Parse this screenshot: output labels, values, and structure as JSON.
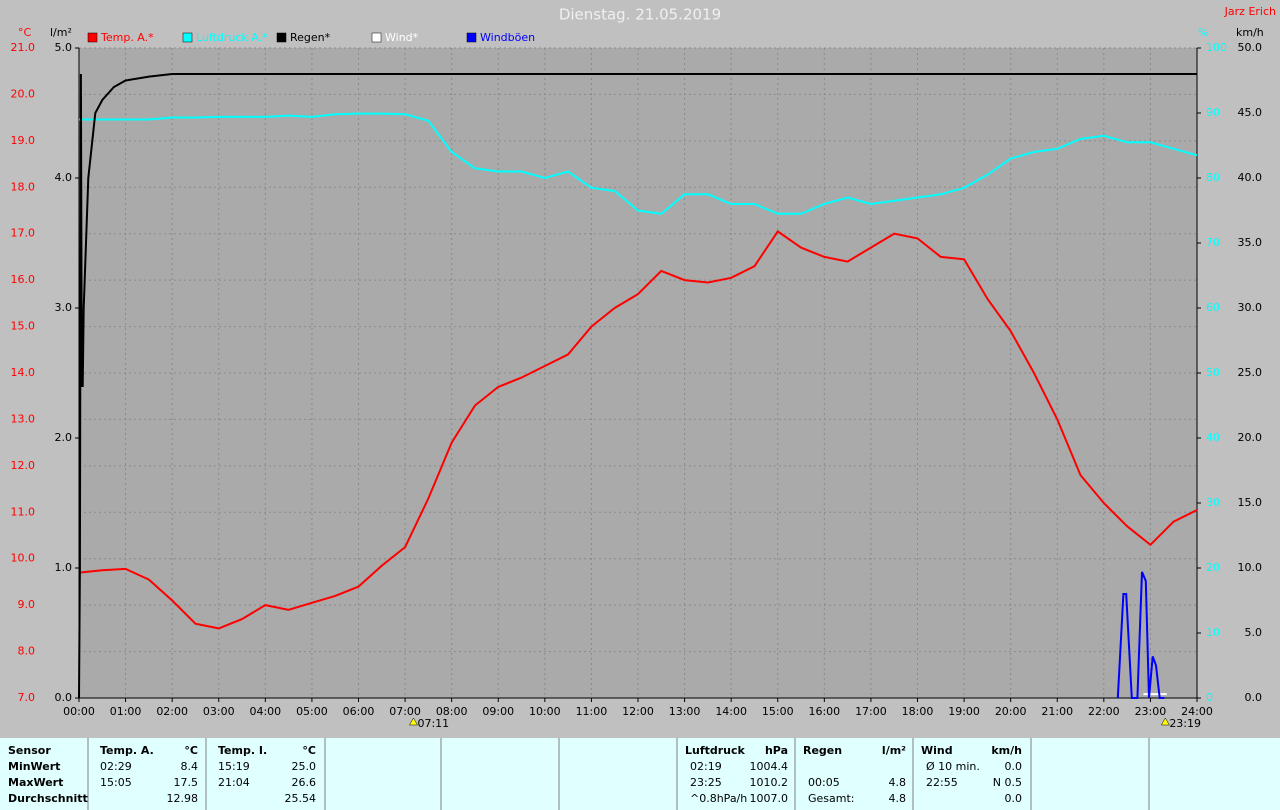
{
  "chart_data": {
    "type": "line",
    "title": "Dienstag. 21.05.2019",
    "station": "Jarz Erich",
    "ylabel": "°C",
    "y2label": "l/m²",
    "y3label": "%",
    "y4label": "km/h",
    "grid": true,
    "x": [
      0,
      0.5,
      1,
      1.5,
      2,
      2.5,
      3,
      3.5,
      4,
      4.5,
      5,
      5.5,
      6,
      6.5,
      7,
      7.5,
      8,
      8.5,
      9,
      9.5,
      10,
      10.5,
      11,
      11.5,
      12,
      12.5,
      13,
      13.5,
      14,
      14.5,
      15,
      15.5,
      16,
      16.5,
      17,
      17.5,
      18,
      18.5,
      19,
      19.5,
      20,
      20.5,
      21,
      21.5,
      22,
      22.5,
      23,
      23.5,
      24
    ],
    "xlim": [
      0,
      24
    ],
    "xticks": [
      {
        "value": 0,
        "label": "00:00"
      },
      {
        "value": 1,
        "label": "01:00"
      },
      {
        "value": 2,
        "label": "02:00"
      },
      {
        "value": 3,
        "label": "03:00"
      },
      {
        "value": 4,
        "label": "04:00"
      },
      {
        "value": 5,
        "label": "05:00"
      },
      {
        "value": 6,
        "label": "06:00"
      },
      {
        "value": 7,
        "label": "07:00"
      },
      {
        "value": 8,
        "label": "08:00"
      },
      {
        "value": 9,
        "label": "09:00"
      },
      {
        "value": 10,
        "label": "10:00"
      },
      {
        "value": 11,
        "label": "11:00"
      },
      {
        "value": 12,
        "label": "12:00"
      },
      {
        "value": 13,
        "label": "13:00"
      },
      {
        "value": 14,
        "label": "14:00"
      },
      {
        "value": 15,
        "label": "15:00"
      },
      {
        "value": 16,
        "label": "16:00"
      },
      {
        "value": 17,
        "label": "17:00"
      },
      {
        "value": 18,
        "label": "18:00"
      },
      {
        "value": 19,
        "label": "19:00"
      },
      {
        "value": 20,
        "label": "20:00"
      },
      {
        "value": 21,
        "label": "21:00"
      },
      {
        "value": 22,
        "label": "22:00"
      },
      {
        "value": 23,
        "label": "23:00"
      },
      {
        "value": 24,
        "label": "24:00"
      }
    ],
    "ylim": [
      7,
      21
    ],
    "yticks": [
      {
        "value": 7,
        "label": "7.0"
      },
      {
        "value": 8,
        "label": "8.0"
      },
      {
        "value": 9,
        "label": "9.0"
      },
      {
        "value": 10,
        "label": "10.0"
      },
      {
        "value": 11,
        "label": "11.0"
      },
      {
        "value": 12,
        "label": "12.0"
      },
      {
        "value": 13,
        "label": "13.0"
      },
      {
        "value": 14,
        "label": "14.0"
      },
      {
        "value": 15,
        "label": "15.0"
      },
      {
        "value": 16,
        "label": "16.0"
      },
      {
        "value": 17,
        "label": "17.0"
      },
      {
        "value": 18,
        "label": "18.0"
      },
      {
        "value": 19,
        "label": "19.0"
      },
      {
        "value": 20,
        "label": "20.0"
      },
      {
        "value": 21,
        "label": "21.0"
      }
    ],
    "y2lim": [
      0,
      5
    ],
    "y2ticks": [
      {
        "value": 0,
        "label": "0.0"
      },
      {
        "value": 1,
        "label": "1.0"
      },
      {
        "value": 2,
        "label": "2.0"
      },
      {
        "value": 3,
        "label": "3.0"
      },
      {
        "value": 4,
        "label": "4.0"
      },
      {
        "value": 5,
        "label": "5.0"
      }
    ],
    "y3lim": [
      0,
      100
    ],
    "y3ticks": [
      0,
      10,
      20,
      30,
      40,
      50,
      60,
      70,
      80,
      90,
      100
    ],
    "y4lim": [
      0,
      50
    ],
    "y4ticks": [
      {
        "value": 0,
        "label": "0.0"
      },
      {
        "value": 5,
        "label": "5.0"
      },
      {
        "value": 10,
        "label": "10.0"
      },
      {
        "value": 15,
        "label": "15.0"
      },
      {
        "value": 20,
        "label": "20.0"
      },
      {
        "value": 25,
        "label": "25.0"
      },
      {
        "value": 30,
        "label": "30.0"
      },
      {
        "value": 35,
        "label": "35.0"
      },
      {
        "value": 40,
        "label": "40.0"
      },
      {
        "value": 45,
        "label": "45.0"
      },
      {
        "value": 50,
        "label": "50.0"
      }
    ],
    "series": [
      {
        "name": "Temp. A.*",
        "color": "#ff0000",
        "axis": "y",
        "values": [
          9.7,
          9.75,
          9.78,
          9.55,
          9.1,
          8.6,
          8.5,
          8.7,
          9.0,
          8.9,
          9.05,
          9.2,
          9.4,
          9.85,
          10.25,
          11.3,
          12.5,
          13.3,
          13.7,
          13.9,
          14.15,
          14.4,
          15.0,
          15.4,
          15.7,
          16.2,
          16.0,
          15.95,
          16.05,
          16.3,
          17.05,
          16.7,
          16.5,
          16.4,
          16.7,
          17.0,
          16.9,
          16.5,
          16.45,
          15.6,
          14.9,
          14.0,
          13.0,
          11.8,
          11.2,
          10.7,
          10.3,
          10.8,
          11.05
        ]
      },
      {
        "name": "Luftdruck A.*",
        "color": "#00ffff",
        "axis": "y3",
        "values": [
          89,
          89,
          89,
          89,
          89.3,
          89.3,
          89.4,
          89.4,
          89.4,
          89.6,
          89.4,
          89.8,
          89.9,
          89.9,
          89.8,
          88.8,
          84,
          81.5,
          81,
          81,
          80,
          81,
          78.5,
          78,
          75,
          74.5,
          77.5,
          77.5,
          76,
          76,
          74.5,
          74.5,
          76,
          77,
          76,
          76.5,
          77,
          77.5,
          78.5,
          80.5,
          83,
          84,
          84.5,
          86,
          86.5,
          85.5,
          85.5,
          84.5,
          83.5
        ]
      },
      {
        "name": "Regen*",
        "color": "#000000",
        "axis": "y2",
        "x": [
          0,
          0.02,
          0.04,
          0.06,
          0.08,
          0.1,
          0.2,
          0.35,
          0.5,
          0.75,
          1.0,
          1.5,
          2.0,
          24
        ],
        "values": [
          0,
          1.0,
          4.8,
          2.4,
          2.4,
          3.0,
          4.0,
          4.5,
          4.6,
          4.7,
          4.75,
          4.78,
          4.8,
          4.8
        ]
      },
      {
        "name": "Wind*",
        "color": "#ffffff",
        "axis": "y4",
        "x": [
          22.85,
          23.35
        ],
        "values": [
          0.3,
          0.3
        ]
      },
      {
        "name": "Windböen",
        "color": "#0000ff",
        "axis": "y4",
        "x": [
          22.3,
          22.42,
          22.48,
          22.6,
          22.72,
          22.82,
          22.9,
          22.97,
          23.05,
          23.12,
          23.2,
          23.3
        ],
        "values": [
          0,
          8.0,
          8.0,
          0,
          0,
          9.7,
          9.0,
          0,
          3.2,
          2.5,
          0,
          0
        ]
      }
    ],
    "annotations": [
      {
        "x": 7.18,
        "text": "07:11"
      },
      {
        "x": 23.32,
        "text": "23:19"
      }
    ]
  },
  "table": {
    "header": [
      "Sensor",
      "Temp. A.",
      "°C",
      "Temp. I.",
      "°C",
      "Luftdruck",
      "hPa",
      "Regen",
      "l/m²",
      "Wind",
      "km/h"
    ],
    "rows": [
      [
        "MinWert",
        "02:29",
        "8.4",
        "15:19",
        "25.0",
        "02:19",
        "1004.4",
        null,
        null,
        "Ø 10 min.",
        "0.0"
      ],
      [
        "MaxWert",
        "15:05",
        "17.5",
        "21:04",
        "26.6",
        "23:25",
        "1010.2",
        "00:05",
        "4.8",
        "22:55",
        "N 0.5"
      ],
      [
        "Durchschnitt",
        null,
        "12.98",
        null,
        "25.54",
        "^0.8hPa/h",
        "1007.0",
        "Gesamt:",
        "4.8",
        null,
        "0.0"
      ]
    ]
  }
}
